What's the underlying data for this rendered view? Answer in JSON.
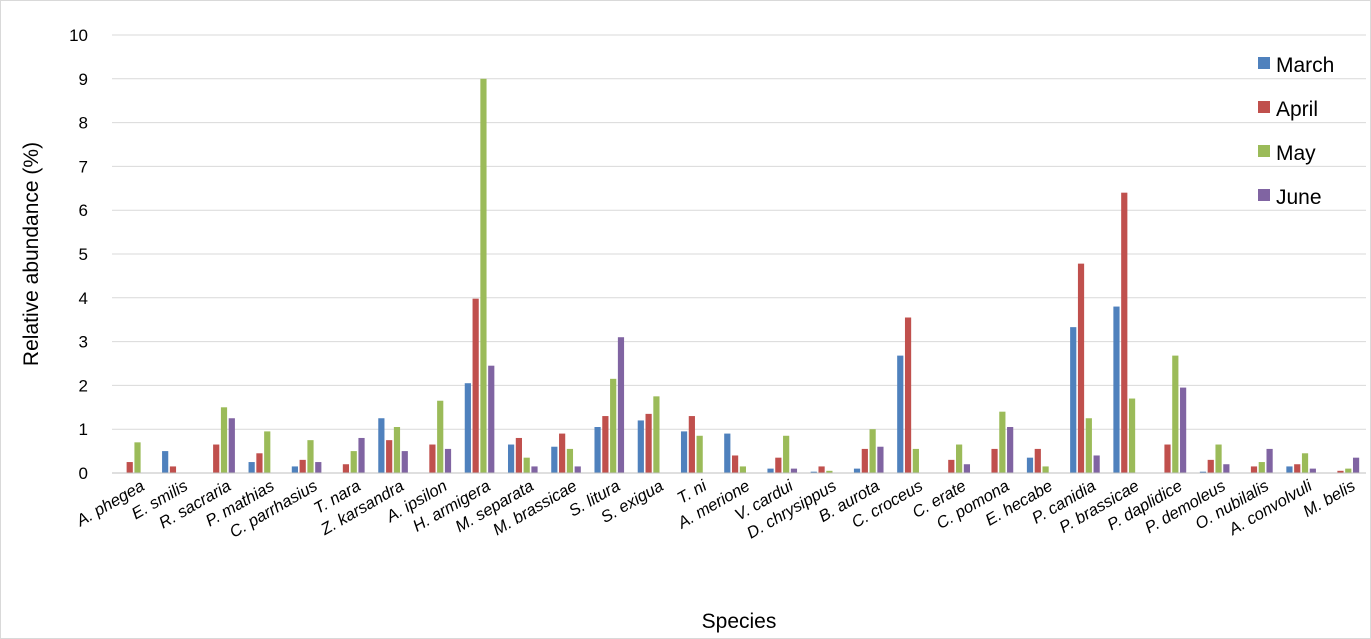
{
  "chart_data": {
    "type": "bar",
    "xlabel": "Species",
    "ylabel": "Relative abundance (%)",
    "ylim": [
      0,
      10
    ],
    "yticks": [
      0,
      1,
      2,
      3,
      4,
      5,
      6,
      7,
      8,
      9,
      10
    ],
    "grid": true,
    "legend_position": "top-right",
    "categories": [
      "A. phegea",
      "E. smilis",
      "R. sacraria",
      "P. mathias",
      "C. parrhasius",
      "T. nara",
      "Z. karsandra",
      "A. ipsilon",
      "H. armigera",
      "M. separata",
      "M. brassicae",
      "S. litura",
      "S. exigua",
      "T. ni",
      "A. merione",
      "V. cardui",
      "D. chrysippus",
      "B. aurota",
      "C. croceus",
      "C. erate",
      "C. pomona",
      "E. hecabe",
      "P. canidia",
      "P. brassicae",
      "P. daplidice",
      "P. demoleus",
      "O. nubilalis",
      "A. convolvuli",
      "M. belis"
    ],
    "series": [
      {
        "name": "March",
        "color": "#4F81BD",
        "values": [
          0,
          0.5,
          0,
          0.25,
          0.15,
          0,
          1.25,
          0,
          2.05,
          0.65,
          0.6,
          1.05,
          1.2,
          0.95,
          0.9,
          0.1,
          0.03,
          0.1,
          2.68,
          0,
          0,
          0.35,
          3.33,
          3.8,
          0,
          0.03,
          0,
          0.15,
          0
        ]
      },
      {
        "name": "April",
        "color": "#C0504D",
        "values": [
          0.25,
          0.15,
          0.65,
          0.45,
          0.3,
          0.2,
          0.75,
          0.65,
          3.98,
          0.8,
          0.9,
          1.3,
          1.35,
          1.3,
          0.4,
          0.35,
          0.15,
          0.55,
          3.55,
          0.3,
          0.55,
          0.55,
          4.78,
          6.4,
          0.65,
          0.3,
          0.15,
          0.2,
          0.05
        ]
      },
      {
        "name": "May",
        "color": "#9BBB59",
        "values": [
          0.7,
          0,
          1.5,
          0.95,
          0.75,
          0.5,
          1.05,
          1.65,
          9.0,
          0.35,
          0.55,
          2.15,
          1.75,
          0.85,
          0.15,
          0.85,
          0.05,
          1.0,
          0.55,
          0.65,
          1.4,
          0.15,
          1.25,
          1.7,
          2.68,
          0.65,
          0.25,
          0.45,
          0.1
        ]
      },
      {
        "name": "June",
        "color": "#8064A2",
        "values": [
          0,
          0,
          1.25,
          0,
          0.25,
          0.8,
          0.5,
          0.55,
          2.45,
          0.15,
          0.15,
          3.1,
          0,
          0,
          0,
          0.1,
          0,
          0.6,
          0,
          0.2,
          1.05,
          0,
          0.4,
          0,
          1.95,
          0.2,
          0.55,
          0.1,
          0.35
        ]
      }
    ]
  }
}
